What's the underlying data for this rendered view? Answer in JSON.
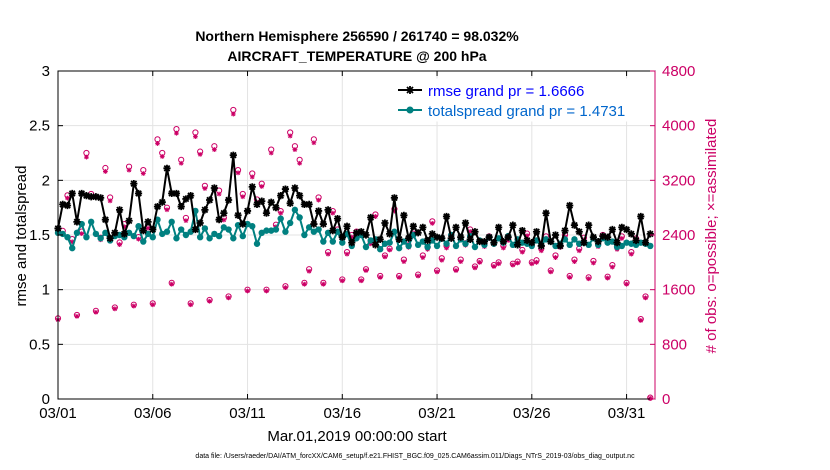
{
  "chart_data": {
    "type": "line",
    "title_line1": "Northern Hemisphere 256590 / 261740 = 98.032%",
    "title_line2": "AIRCRAFT_TEMPERATURE @ 200 hPa",
    "xlabel": "Mar.01,2019 00:00:00 start",
    "ylabel": "rmse and totalspread",
    "ylabel_right": "# of obs: o=possible; ×=assimilated",
    "footnote": "data file: /Users/raeder/DAI/ATM_forcXX/CAM6_setup/f.e21.FHIST_BGC.f09_025.CAM6assim.011/Diags_NTrS_2019-03/obs_diag_output.nc",
    "xlim": [
      0,
      31.5
    ],
    "ylim": [
      0,
      3
    ],
    "ylim_right": [
      0,
      4800
    ],
    "xticks": [
      0,
      5,
      10,
      15,
      20,
      25,
      30
    ],
    "xtick_labels": [
      "03/01",
      "03/06",
      "03/11",
      "03/16",
      "03/21",
      "03/26",
      "03/31"
    ],
    "yticks": [
      0,
      0.5,
      1,
      1.5,
      2,
      2.5,
      3
    ],
    "ytick_labels": [
      "0",
      "0.5",
      "1",
      "1.5",
      "2",
      "2.5",
      "3"
    ],
    "yticks_right": [
      0,
      800,
      1600,
      2400,
      3200,
      4000,
      4800
    ],
    "ytick_labels_right": [
      "0",
      "800",
      "1600",
      "2400",
      "3200",
      "4000",
      "4800"
    ],
    "colors": {
      "rmse": "#000000",
      "spread": "#008080",
      "obs": "#cc0066"
    },
    "legend": [
      {
        "label": "rmse grand pr = 1.6666",
        "color": "#0000ff",
        "marker": "star"
      },
      {
        "label": "totalspread grand pr = 1.4731",
        "color": "#0066cc",
        "marker": "circle"
      }
    ],
    "x": [
      0.0,
      0.25,
      0.5,
      0.75,
      1.0,
      1.25,
      1.5,
      1.75,
      2.0,
      2.25,
      2.5,
      2.75,
      3.0,
      3.25,
      3.5,
      3.75,
      4.0,
      4.25,
      4.5,
      4.75,
      5.0,
      5.25,
      5.5,
      5.75,
      6.0,
      6.25,
      6.5,
      6.75,
      7.0,
      7.25,
      7.5,
      7.75,
      8.0,
      8.25,
      8.5,
      8.75,
      9.0,
      9.25,
      9.5,
      9.75,
      10.0,
      10.25,
      10.5,
      10.75,
      11.0,
      11.25,
      11.5,
      11.75,
      12.0,
      12.25,
      12.5,
      12.75,
      13.0,
      13.25,
      13.5,
      13.75,
      14.0,
      14.25,
      14.5,
      14.75,
      15.0,
      15.25,
      15.5,
      15.75,
      16.0,
      16.25,
      16.5,
      16.75,
      17.0,
      17.25,
      17.5,
      17.75,
      18.0,
      18.25,
      18.5,
      18.75,
      19.0,
      19.25,
      19.5,
      19.75,
      20.0,
      20.25,
      20.5,
      20.75,
      21.0,
      21.25,
      21.5,
      21.75,
      22.0,
      22.25,
      22.5,
      22.75,
      23.0,
      23.25,
      23.5,
      23.75,
      24.0,
      24.25,
      24.5,
      24.75,
      25.0,
      25.25,
      25.5,
      25.75,
      26.0,
      26.25,
      26.5,
      26.75,
      27.0,
      27.25,
      27.5,
      27.75,
      28.0,
      28.25,
      28.5,
      28.75,
      29.0,
      29.25,
      29.5,
      29.75,
      30.0,
      30.25,
      30.5,
      30.75,
      31.0,
      31.25
    ],
    "series": [
      {
        "name": "rmse",
        "values": [
          1.56,
          1.78,
          1.77,
          1.88,
          1.62,
          1.88,
          1.86,
          1.85,
          1.85,
          1.84,
          1.64,
          1.47,
          1.52,
          1.73,
          1.51,
          1.63,
          1.97,
          1.88,
          1.54,
          1.62,
          1.55,
          1.76,
          1.8,
          2.11,
          1.88,
          1.88,
          1.76,
          1.83,
          1.86,
          1.55,
          1.61,
          1.73,
          1.82,
          1.93,
          1.64,
          1.7,
          1.82,
          2.23,
          1.68,
          1.6,
          1.72,
          1.94,
          1.78,
          1.81,
          1.7,
          1.8,
          1.75,
          1.86,
          1.92,
          1.79,
          1.93,
          1.86,
          1.78,
          1.78,
          1.6,
          1.72,
          1.6,
          1.73,
          1.54,
          1.65,
          1.48,
          1.58,
          1.43,
          1.52,
          1.53,
          1.5,
          1.66,
          1.41,
          1.46,
          1.61,
          1.51,
          1.84,
          1.46,
          1.68,
          1.47,
          1.58,
          1.52,
          1.57,
          1.45,
          1.51,
          1.48,
          1.47,
          1.67,
          1.47,
          1.57,
          1.48,
          1.61,
          1.46,
          1.53,
          1.44,
          1.44,
          1.48,
          1.43,
          1.57,
          1.44,
          1.48,
          1.59,
          1.41,
          1.54,
          1.45,
          1.43,
          1.53,
          1.4,
          1.7,
          1.44,
          1.5,
          1.4,
          1.54,
          1.77,
          1.59,
          1.53,
          1.43,
          1.59,
          1.48,
          1.44,
          1.49,
          1.48,
          1.55,
          1.43,
          1.57,
          1.55,
          1.51,
          1.45,
          1.67,
          1.43,
          1.51
        ],
        "marker": "star",
        "color": "#000000"
      },
      {
        "name": "totalspread",
        "values": [
          1.52,
          1.51,
          1.48,
          1.38,
          1.52,
          1.6,
          1.48,
          1.62,
          1.51,
          1.47,
          1.52,
          1.45,
          1.49,
          1.5,
          1.48,
          1.52,
          1.49,
          1.58,
          1.44,
          1.51,
          1.48,
          1.64,
          1.51,
          1.53,
          1.62,
          1.47,
          1.55,
          1.5,
          1.53,
          1.72,
          1.48,
          1.56,
          1.47,
          1.51,
          1.49,
          1.57,
          1.55,
          1.47,
          1.59,
          1.49,
          1.6,
          1.58,
          1.42,
          1.52,
          1.54,
          1.54,
          1.55,
          1.65,
          1.53,
          1.61,
          1.73,
          1.66,
          1.5,
          1.57,
          1.53,
          1.55,
          1.44,
          1.52,
          1.44,
          1.53,
          1.43,
          1.51,
          1.4,
          1.47,
          1.5,
          1.39,
          1.45,
          1.46,
          1.37,
          1.42,
          1.43,
          1.53,
          1.38,
          1.44,
          1.4,
          1.5,
          1.41,
          1.44,
          1.39,
          1.45,
          1.4,
          1.47,
          1.42,
          1.5,
          1.4,
          1.46,
          1.42,
          1.49,
          1.39,
          1.45,
          1.41,
          1.48,
          1.42,
          1.47,
          1.43,
          1.49,
          1.41,
          1.46,
          1.43,
          1.42,
          1.4,
          1.45,
          1.41,
          1.46,
          1.44,
          1.4,
          1.42,
          1.46,
          1.41,
          1.46,
          1.42,
          1.43,
          1.41,
          1.47,
          1.41,
          1.47,
          1.43,
          1.44,
          1.39,
          1.4,
          1.43,
          1.42,
          1.41,
          1.43,
          1.42,
          1.4
        ],
        "marker": "circle",
        "color": "#008080"
      },
      {
        "name": "obs_possible",
        "axis": "right",
        "marker": "circle",
        "color": "#cc0066",
        "values": [
          1180,
          2460,
          2980,
          2340,
          1230,
          2450,
          3600,
          3000,
          1290,
          2360,
          3380,
          2950,
          1340,
          2290,
          2560,
          3400,
          1380,
          2370,
          3350,
          2530,
          1400,
          3800,
          3600,
          2800,
          1700,
          3950,
          3500,
          2650,
          1400,
          3900,
          3620,
          3120,
          1450,
          3700,
          3050,
          2650,
          1500,
          4230,
          3350,
          3000,
          1600,
          3300,
          2920,
          3150,
          1600,
          3650,
          2550,
          2750,
          1650,
          3900,
          3700,
          3500,
          1700,
          1900,
          3800,
          2950,
          1700,
          2150,
          2750,
          2480,
          1750,
          2150,
          2400,
          2450,
          1750,
          1900,
          2300,
          2700,
          1800,
          2100,
          2200,
          2780,
          1800,
          2040,
          2250,
          2420,
          1820,
          2100,
          2220,
          2600,
          1880,
          2060,
          2240,
          2400,
          1900,
          2040,
          2280,
          2480,
          1940,
          2020,
          2260,
          2380,
          1960,
          2000,
          2240,
          2350,
          1980,
          2010,
          2180,
          2420,
          2000,
          2030,
          2200,
          2380,
          1880,
          2100,
          2250,
          2400,
          1800,
          2040,
          2200,
          2360,
          1780,
          2020,
          2260,
          2400,
          1790,
          1960,
          2220,
          2380,
          1700,
          2150,
          2350,
          1170,
          1500,
          20
        ]
      },
      {
        "name": "obs_assimilated",
        "axis": "right",
        "marker": "x",
        "color": "#cc0066",
        "values": [
          1160,
          2420,
          2940,
          2300,
          1210,
          2420,
          3540,
          2960,
          1270,
          2330,
          3330,
          2900,
          1320,
          2260,
          2520,
          3350,
          1360,
          2340,
          3300,
          2500,
          1380,
          3740,
          3550,
          2770,
          1680,
          3890,
          3450,
          2610,
          1380,
          3840,
          3580,
          3080,
          1430,
          3650,
          3000,
          2620,
          1480,
          4170,
          3310,
          2960,
          1580,
          3250,
          2880,
          3110,
          1580,
          3600,
          2520,
          2720,
          1630,
          3850,
          3650,
          3450,
          1680,
          1870,
          3750,
          2910,
          1680,
          2120,
          2720,
          2450,
          1730,
          2120,
          2370,
          2420,
          1730,
          1880,
          2270,
          2670,
          1780,
          2080,
          2180,
          2750,
          1780,
          2010,
          2220,
          2390,
          1800,
          2070,
          2190,
          2570,
          1860,
          2030,
          2210,
          2370,
          1880,
          2010,
          2250,
          2450,
          1920,
          2000,
          2230,
          2350,
          1940,
          1980,
          2210,
          2320,
          1960,
          1990,
          2150,
          2390,
          1980,
          2000,
          2170,
          2350,
          1860,
          2070,
          2220,
          2370,
          1780,
          2010,
          2170,
          2330,
          1760,
          1990,
          2230,
          2370,
          1770,
          1930,
          2190,
          2350,
          1680,
          2120,
          2320,
          1150,
          1480,
          10
        ]
      }
    ]
  }
}
